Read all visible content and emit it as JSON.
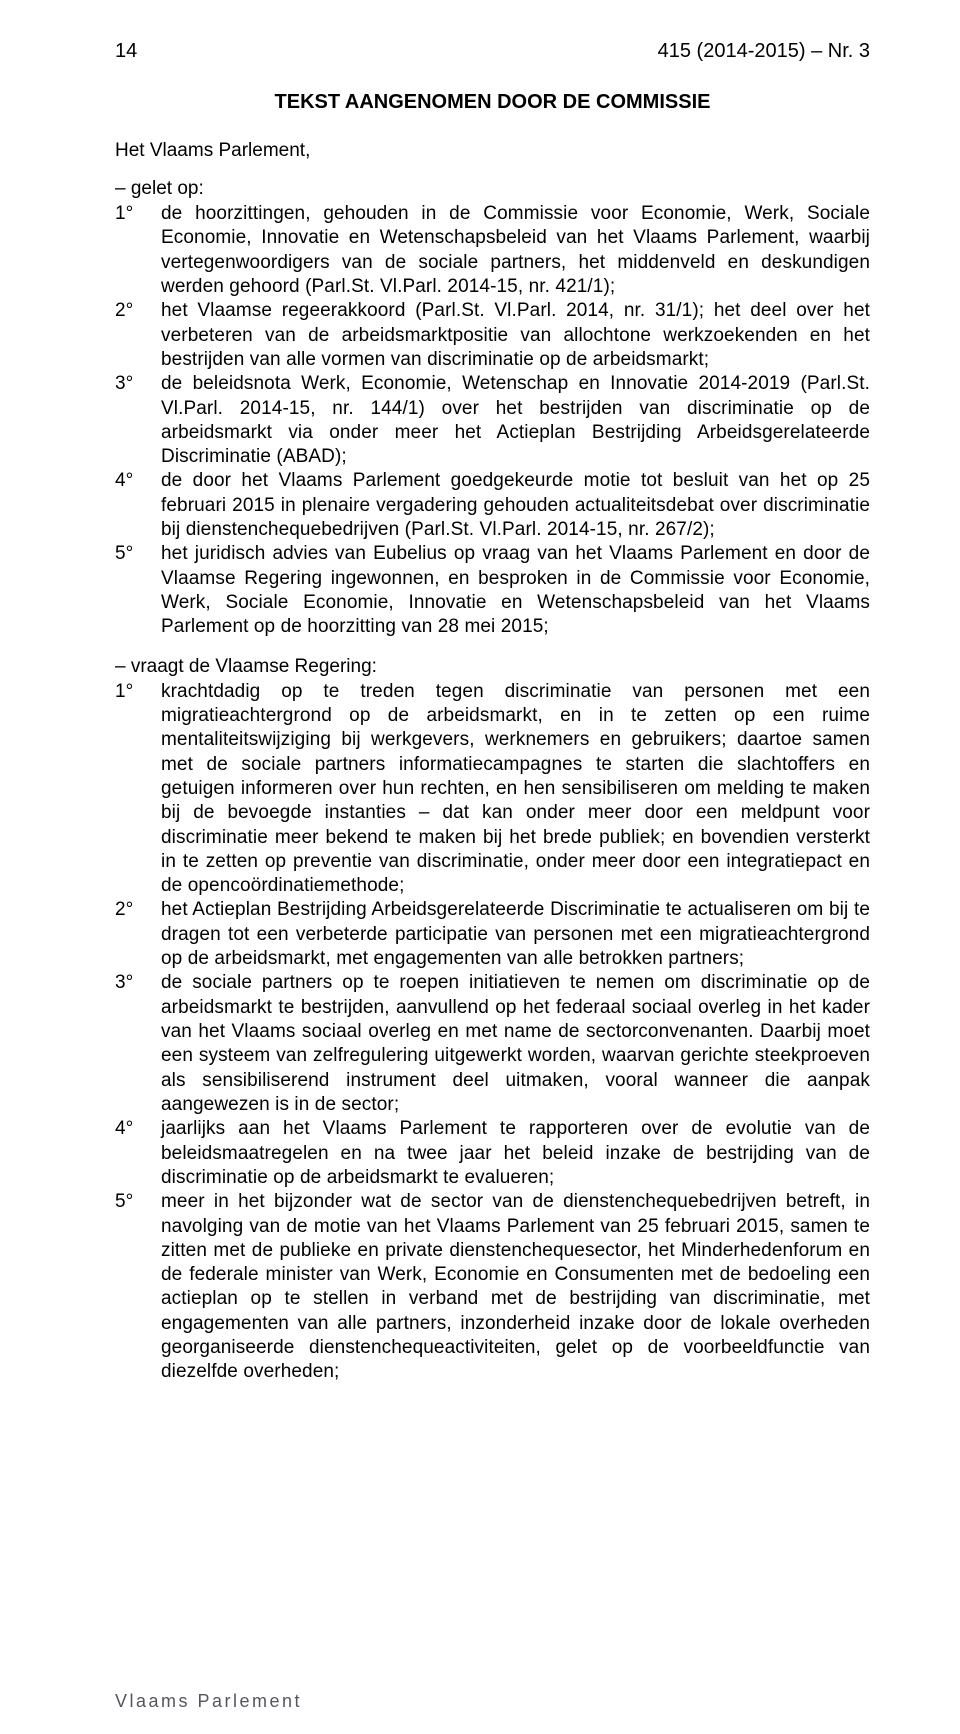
{
  "header": {
    "page_number": "14",
    "doc_ref": "415 (2014-2015) – Nr. 3"
  },
  "title": "TEKST AANGENOMEN DOOR DE COMMISSIE",
  "intro": "Het Vlaams Parlement,",
  "gelet": {
    "lead": "– gelet op:",
    "items": [
      {
        "n": "1°",
        "t": "de hoorzittingen, gehouden in de Commissie voor Economie, Werk, Sociale Economie, Innovatie en Wetenschapsbeleid van het Vlaams Parlement, waarbij vertegenwoordigers van de sociale partners, het middenveld en deskundigen werden gehoord (Parl.St. Vl.Parl. 2014-15, nr. 421/1);"
      },
      {
        "n": "2°",
        "t": "het Vlaamse regeerakkoord (Parl.St. Vl.Parl. 2014, nr. 31/1); het deel over het verbeteren van de arbeidsmarktpositie van allochtone werkzoekenden en het bestrijden van alle vormen van discriminatie op de arbeidsmarkt;"
      },
      {
        "n": "3°",
        "t": "de beleidsnota Werk, Economie, Wetenschap en Innovatie 2014-2019 (Parl.St. Vl.Parl. 2014-15, nr. 144/1) over het bestrijden van discriminatie op de arbeidsmarkt via onder meer het Actieplan Bestrijding Arbeidsgerelateerde Discriminatie (ABAD);"
      },
      {
        "n": "4°",
        "t": "de door het Vlaams Parlement goedgekeurde motie tot besluit van het op 25 februari 2015 in plenaire vergadering gehouden actualiteitsdebat over discriminatie bij dienstenchequebedrijven (Parl.St. Vl.Parl. 2014-15, nr. 267/2);"
      },
      {
        "n": "5°",
        "t": "het juridisch advies van Eubelius op vraag van het Vlaams Parlement en door de Vlaamse Regering ingewonnen, en besproken in de Commissie voor Economie, Werk, Sociale Economie, Innovatie en Wetenschapsbeleid van het Vlaams Parlement op de hoorzitting van 28 mei 2015;"
      }
    ]
  },
  "vraagt": {
    "lead": "– vraagt de Vlaamse Regering:",
    "items": [
      {
        "n": "1°",
        "t": "krachtdadig op te treden tegen discriminatie van personen met een migratieachtergrond op de arbeidsmarkt, en in te zetten op een ruime mentaliteitswijziging bij werkgevers, werknemers en gebruikers; daartoe samen met de sociale partners informatiecampagnes te starten die slachtoffers en getuigen informeren over hun rechten, en hen sensibiliseren om melding te maken bij de bevoegde instanties – dat kan onder meer door een meldpunt voor discriminatie meer bekend te maken bij het brede publiek; en bovendien versterkt in te zetten op preventie van discriminatie, onder meer door een integratiepact en de opencoördinatiemethode;"
      },
      {
        "n": "2°",
        "t": "het Actieplan Bestrijding Arbeidsgerelateerde Discriminatie te actualiseren om bij te dragen tot een verbeterde participatie van personen met een migratieachtergrond op de arbeidsmarkt, met engagementen van alle betrokken partners;"
      },
      {
        "n": "3°",
        "t": "de sociale partners op te roepen initiatieven te nemen om discriminatie op de arbeidsmarkt te bestrijden, aanvullend op het federaal sociaal overleg in het kader van het Vlaams sociaal overleg en met name de sectorconvenanten. Daarbij moet een systeem van zelfregulering uitgewerkt worden, waarvan gerichte steekproeven als sensibiliserend instrument deel uitmaken, vooral wanneer die aanpak aangewezen is in de sector;"
      },
      {
        "n": "4°",
        "t": "jaarlijks aan het Vlaams Parlement te rapporteren over de evolutie van de beleidsmaatregelen en na twee jaar het beleid inzake de bestrijding van de discriminatie op de arbeidsmarkt te evalueren;"
      },
      {
        "n": "5°",
        "t": "meer in het bijzonder wat de sector van de dienstenchequebedrijven betreft, in navolging van de motie van het Vlaams Parlement van 25 februari 2015, samen te zitten met de publieke en private dienstenchequesector, het Minderhedenforum en de federale minister van Werk, Economie en Consumenten met de bedoeling een actieplan op te stellen in verband met de bestrijding van discriminatie, met engagementen van alle partners, inzonderheid inzake door de lokale overheden georganiseerde dienstenchequeactiviteiten, gelet op de voorbeeldfunctie van diezelfde overheden;"
      }
    ]
  },
  "footer": "Vlaams Parlement",
  "colors": {
    "text": "#000000",
    "footer": "#555560",
    "background": "#ffffff"
  },
  "typography": {
    "body_fontsize_pt": 14,
    "title_fontsize_pt": 15,
    "line_height": 1.28,
    "font_family": "Verdana"
  }
}
